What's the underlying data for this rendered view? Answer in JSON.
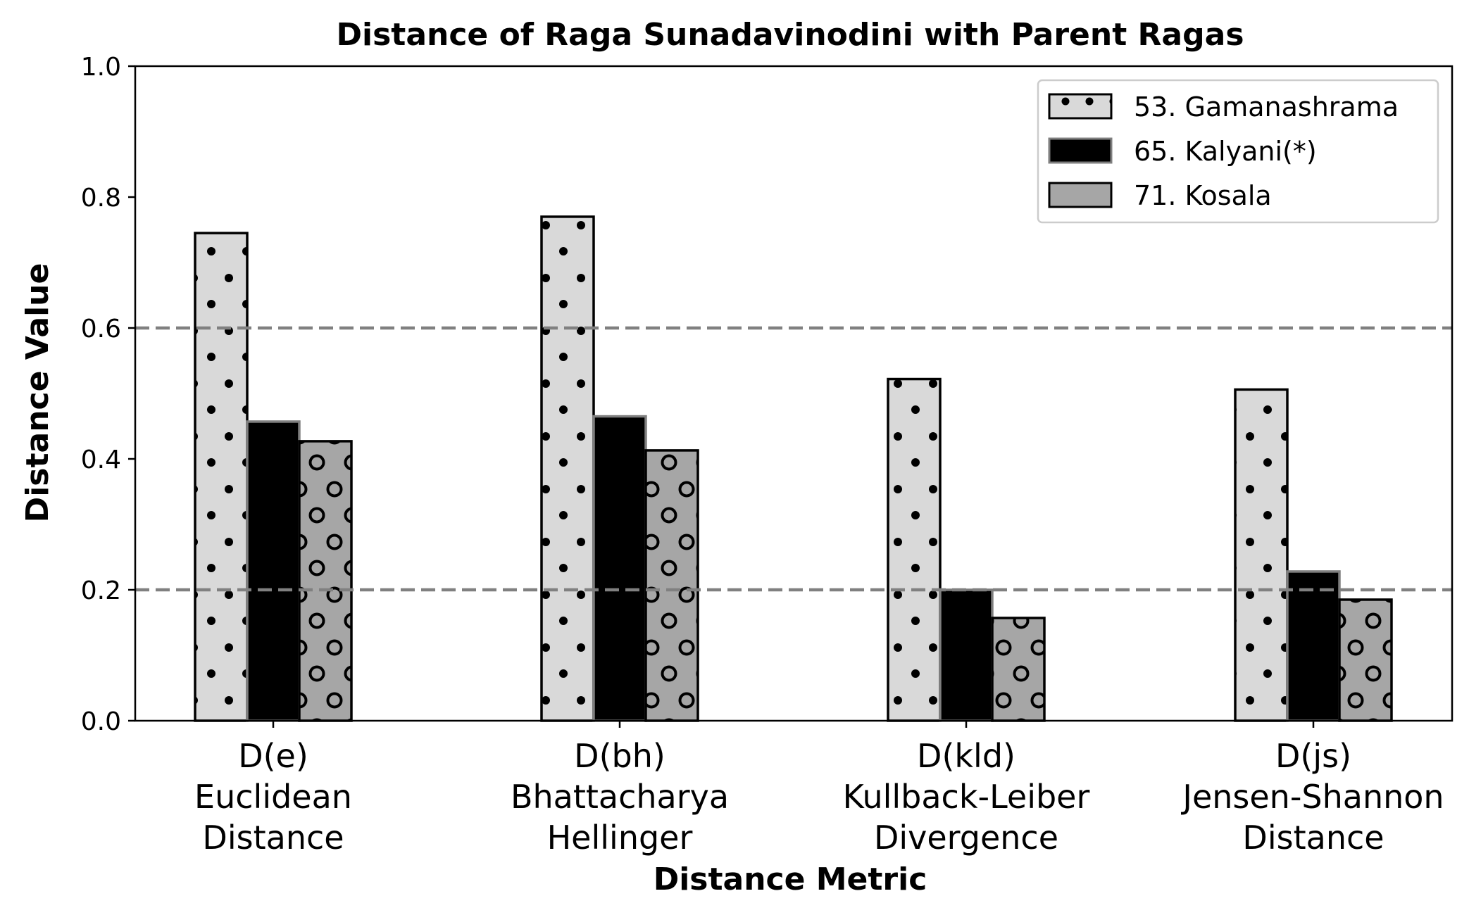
{
  "chart_data": {
    "type": "bar",
    "title": "Distance of Raga Sunadavinodini with Parent Ragas",
    "xlabel": "Distance Metric",
    "ylabel": "Distance Value",
    "ylim": [
      0.0,
      1.0
    ],
    "yticks": [
      "0.0",
      "0.2",
      "0.4",
      "0.6",
      "0.8",
      "1.0"
    ],
    "categories": [
      [
        "D(e)",
        "Euclidean",
        "Distance"
      ],
      [
        "D(bh)",
        "Bhattacharya",
        "Hellinger"
      ],
      [
        "D(kld)",
        "Kullback-Leiber",
        "Divergence"
      ],
      [
        "D(js)",
        "Jensen-Shannon",
        "Distance"
      ]
    ],
    "series": [
      {
        "name": "53. Gamanashrama",
        "values": [
          0.745,
          0.77,
          0.522,
          0.506
        ],
        "color": "#d9d9d9",
        "hatch": "dots"
      },
      {
        "name": "65. Kalyani(*)",
        "values": [
          0.457,
          0.465,
          0.2,
          0.228
        ],
        "color": "#000000",
        "hatch": "none"
      },
      {
        "name": "71. Kosala",
        "values": [
          0.427,
          0.413,
          0.157,
          0.185
        ],
        "color": "#a6a6a6",
        "hatch": "circles"
      }
    ],
    "reference_lines": [
      0.2,
      0.6
    ],
    "reference_line_color": "#808080",
    "grid": false,
    "legend_position": "top-right"
  }
}
